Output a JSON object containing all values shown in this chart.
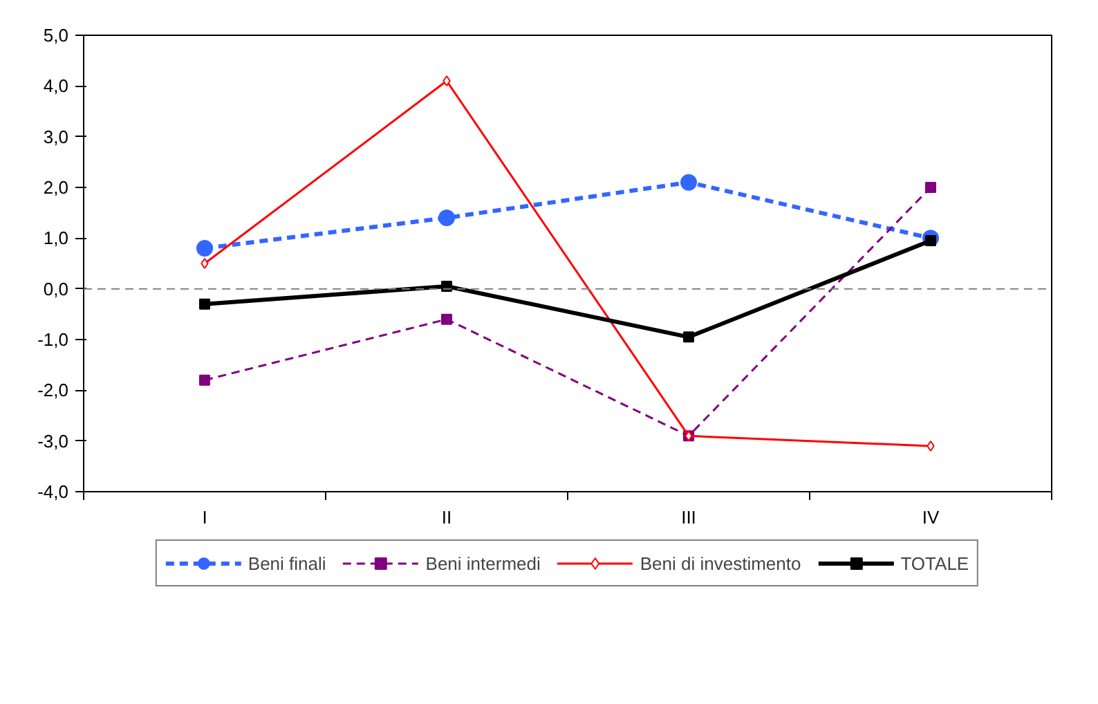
{
  "chart_data": {
    "type": "line",
    "categories": [
      "I",
      "II",
      "III",
      "IV"
    ],
    "series": [
      {
        "name": "Beni finali",
        "color": "#3366ff",
        "values": [
          0.8,
          1.4,
          2.1,
          1.0
        ],
        "line_style": "dashed",
        "marker": "circle"
      },
      {
        "name": "Beni intermedi",
        "color": "#800080",
        "values": [
          -1.8,
          -0.6,
          -2.9,
          2.0
        ],
        "line_style": "dashed",
        "marker": "square"
      },
      {
        "name": "Beni di investimento",
        "color": "#ff0000",
        "values": [
          0.5,
          4.1,
          -2.9,
          -3.1
        ],
        "line_style": "solid",
        "marker": "diamond"
      },
      {
        "name": "TOTALE",
        "color": "#000000",
        "values": [
          -0.3,
          0.05,
          -0.95,
          0.95
        ],
        "line_style": "solid",
        "marker": "square"
      }
    ],
    "ylim": [
      -4,
      5
    ],
    "yticks": [
      {
        "value": -4,
        "label": "-4,0"
      },
      {
        "value": -3,
        "label": "-3,0"
      },
      {
        "value": -2,
        "label": "-2,0"
      },
      {
        "value": -1,
        "label": "-1,0"
      },
      {
        "value": 0,
        "label": "0,0"
      },
      {
        "value": 1,
        "label": "1,0"
      },
      {
        "value": 2,
        "label": "2,0"
      },
      {
        "value": 3,
        "label": "3,0"
      },
      {
        "value": 4,
        "label": "4,0"
      },
      {
        "value": 5,
        "label": "5,0"
      }
    ],
    "ref_lines": [
      {
        "axis": "y",
        "value": 0,
        "color": "#808080",
        "line_style": "dashed"
      }
    ],
    "grid": false,
    "legend": "bottom"
  }
}
